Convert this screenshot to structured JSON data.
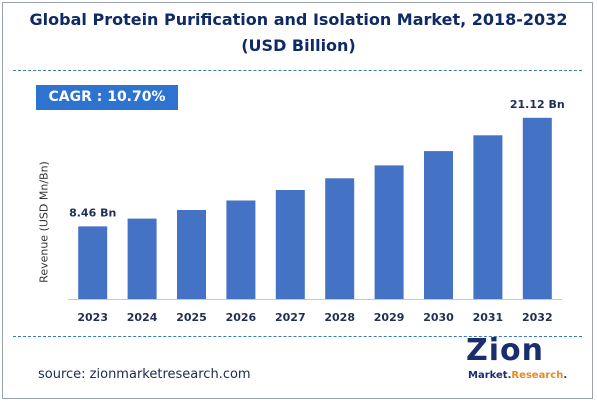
{
  "title": {
    "line1": "Global Protein Purification and Isolation Market, 2018-2032",
    "line2": "(USD Billion)"
  },
  "cagr_label": "CAGR : 10.70%",
  "source": "source: zionmarketresearch.com",
  "logo": {
    "main": "Zion",
    "sub_prefix": "Market.",
    "sub_accent": "Research",
    "sub_suffix": "."
  },
  "colors": {
    "bar": "#4472c4",
    "title": "#0f2a66",
    "cagr_box": "#2f73d0",
    "dash": "#3c78b5",
    "logo_accent": "#e58a1f"
  },
  "chart_data": {
    "type": "bar",
    "title": "Global Protein Purification and Isolation Market, 2018-2032",
    "subtitle": "(USD Billion)",
    "xlabel": "",
    "ylabel": "Revenue (USD Mn/Bn)",
    "categories": [
      "2023",
      "2024",
      "2025",
      "2026",
      "2027",
      "2028",
      "2029",
      "2030",
      "2031",
      "2032"
    ],
    "values": [
      8.46,
      9.37,
      10.37,
      11.48,
      12.71,
      14.07,
      15.57,
      17.24,
      19.08,
      21.12
    ],
    "data_labels": [
      {
        "index": 0,
        "text": "8.46 Bn"
      },
      {
        "index": 9,
        "text": "21.12 Bn"
      }
    ],
    "ylim": [
      0,
      22.5
    ],
    "grid": false,
    "legend": "none"
  }
}
